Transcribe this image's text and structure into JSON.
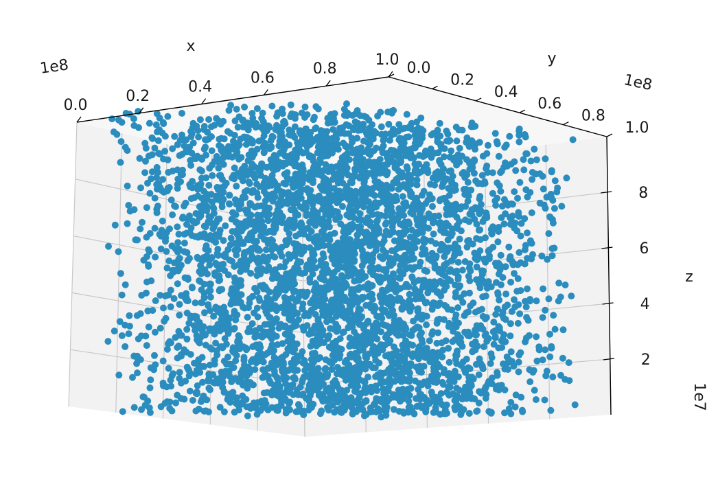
{
  "chart_data": {
    "type": "scatter",
    "projection": "3d",
    "marker_color": "#2b8cbe",
    "grid": true,
    "point_distribution": "dense uniform cloud filling the axis box",
    "x_axis": {
      "label": "x",
      "offset_text": "1e8",
      "range": [
        0.0,
        1.0
      ],
      "ticks": [
        "0.0",
        "0.2",
        "0.4",
        "0.6",
        "0.8",
        "1.0"
      ]
    },
    "y_axis": {
      "label": "y",
      "offset_text": "1e8",
      "range": [
        0.0,
        1.0
      ],
      "ticks": [
        "0.0",
        "0.2",
        "0.4",
        "0.6",
        "0.8",
        "1.0"
      ]
    },
    "z_axis": {
      "label": "z",
      "offset_text": "1e7",
      "range": [
        0,
        10
      ],
      "ticks": [
        "2",
        "4",
        "6",
        "8"
      ]
    }
  }
}
